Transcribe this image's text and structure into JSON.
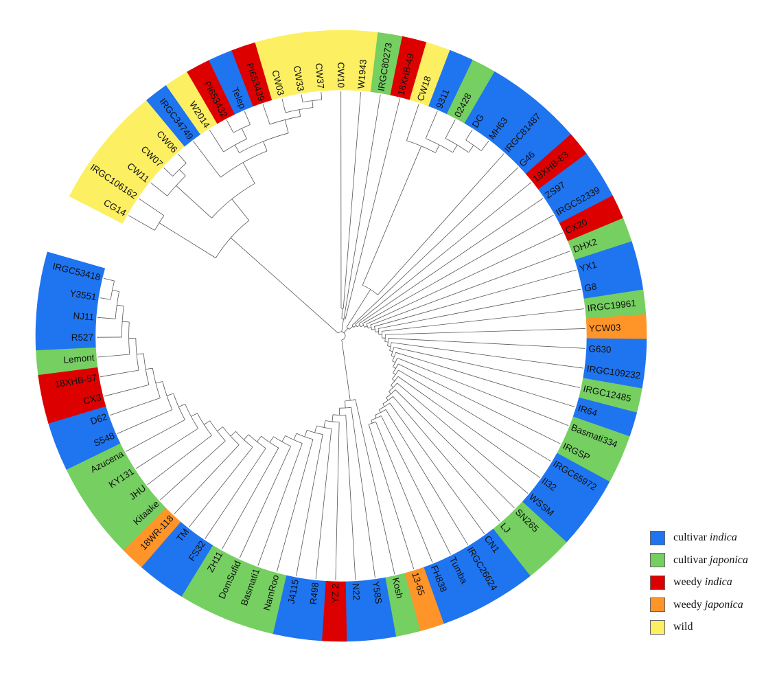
{
  "groups": {
    "ci": {
      "color": "#1f74f0",
      "prefix": "cultivar",
      "italic": "indica"
    },
    "cj": {
      "color": "#76cf61",
      "prefix": "cultivar",
      "italic": "japonica"
    },
    "wi": {
      "color": "#dd0000",
      "prefix": "weedy",
      "italic": "indica"
    },
    "wj": {
      "color": "#ff9428",
      "prefix": "weedy",
      "italic": "japonica"
    },
    "wd": {
      "color": "#fdef62",
      "prefix": "wild",
      "italic": ""
    }
  },
  "legend_order": [
    "ci",
    "cj",
    "wi",
    "wj",
    "wd"
  ],
  "leaves": [
    {
      "name": "CG14",
      "group": "wd"
    },
    {
      "name": "IRGC106162",
      "group": "wd"
    },
    {
      "name": "CW11",
      "group": "wd"
    },
    {
      "name": "CW07",
      "group": "wd"
    },
    {
      "name": "CW06",
      "group": "wd"
    },
    {
      "name": "IRGC34749",
      "group": "ci"
    },
    {
      "name": "W2014",
      "group": "wd"
    },
    {
      "name": "PI653432",
      "group": "wi"
    },
    {
      "name": "Telep",
      "group": "ci"
    },
    {
      "name": "PI653439",
      "group": "wi"
    },
    {
      "name": "CW03",
      "group": "wd"
    },
    {
      "name": "CW33",
      "group": "wd"
    },
    {
      "name": "CW37",
      "group": "wd"
    },
    {
      "name": "CW10",
      "group": "wd"
    },
    {
      "name": "W1943",
      "group": "wd"
    },
    {
      "name": "IRGC80273",
      "group": "cj"
    },
    {
      "name": "18XHB-49",
      "group": "wi"
    },
    {
      "name": "CW18",
      "group": "wd"
    },
    {
      "name": "9311",
      "group": "ci"
    },
    {
      "name": "02428",
      "group": "cj"
    },
    {
      "name": "DG",
      "group": "ci"
    },
    {
      "name": "MH63",
      "group": "ci"
    },
    {
      "name": "IRGC81487",
      "group": "ci"
    },
    {
      "name": "G46",
      "group": "ci"
    },
    {
      "name": "18XHB-83",
      "group": "wi"
    },
    {
      "name": "ZS97",
      "group": "ci"
    },
    {
      "name": "IRGC52339",
      "group": "ci"
    },
    {
      "name": "CX20",
      "group": "wi"
    },
    {
      "name": "DHX2",
      "group": "cj"
    },
    {
      "name": "YX1",
      "group": "ci"
    },
    {
      "name": "G8",
      "group": "ci"
    },
    {
      "name": "IRGC19961",
      "group": "cj"
    },
    {
      "name": "YCW03",
      "group": "wj"
    },
    {
      "name": "G630",
      "group": "ci"
    },
    {
      "name": "IRGC109232",
      "group": "ci"
    },
    {
      "name": "IRGC12485",
      "group": "cj"
    },
    {
      "name": "IR64",
      "group": "ci"
    },
    {
      "name": "Basmati334",
      "group": "cj"
    },
    {
      "name": "IRGSP",
      "group": "cj"
    },
    {
      "name": "IRGC65972",
      "group": "ci"
    },
    {
      "name": "II32",
      "group": "ci"
    },
    {
      "name": "WSSM",
      "group": "ci"
    },
    {
      "name": "SN265",
      "group": "cj"
    },
    {
      "name": "LJ",
      "group": "cj"
    },
    {
      "name": "CN1",
      "group": "ci"
    },
    {
      "name": "IRGC26624",
      "group": "ci"
    },
    {
      "name": "Tumba",
      "group": "ci"
    },
    {
      "name": "FH838",
      "group": "ci"
    },
    {
      "name": "13-65",
      "group": "wj"
    },
    {
      "name": "Kosh",
      "group": "cj"
    },
    {
      "name": "Y58S",
      "group": "ci"
    },
    {
      "name": "N22",
      "group": "ci"
    },
    {
      "name": "YZ 2",
      "group": "wi"
    },
    {
      "name": "R498",
      "group": "ci"
    },
    {
      "name": "J4115",
      "group": "ci"
    },
    {
      "name": "NamRoo",
      "group": "cj"
    },
    {
      "name": "Basmati1",
      "group": "cj"
    },
    {
      "name": "DomSufid",
      "group": "cj"
    },
    {
      "name": "ZH11",
      "group": "cj"
    },
    {
      "name": "FS32",
      "group": "ci"
    },
    {
      "name": "TM",
      "group": "ci"
    },
    {
      "name": "18WR-118",
      "group": "wj"
    },
    {
      "name": "Kitaake",
      "group": "cj"
    },
    {
      "name": "JHU",
      "group": "cj"
    },
    {
      "name": "KY131",
      "group": "cj"
    },
    {
      "name": "Azucena",
      "group": "cj"
    },
    {
      "name": "S548",
      "group": "ci"
    },
    {
      "name": "D62",
      "group": "ci"
    },
    {
      "name": "CX3",
      "group": "wi"
    },
    {
      "name": "18XHB-57",
      "group": "wi"
    },
    {
      "name": "Lemont",
      "group": "cj"
    },
    {
      "name": "R527",
      "group": "ci"
    },
    {
      "name": "NJ11",
      "group": "ci"
    },
    {
      "name": "Y3551",
      "group": "ci"
    },
    {
      "name": "IRGC53418",
      "group": "ci"
    }
  ]
}
